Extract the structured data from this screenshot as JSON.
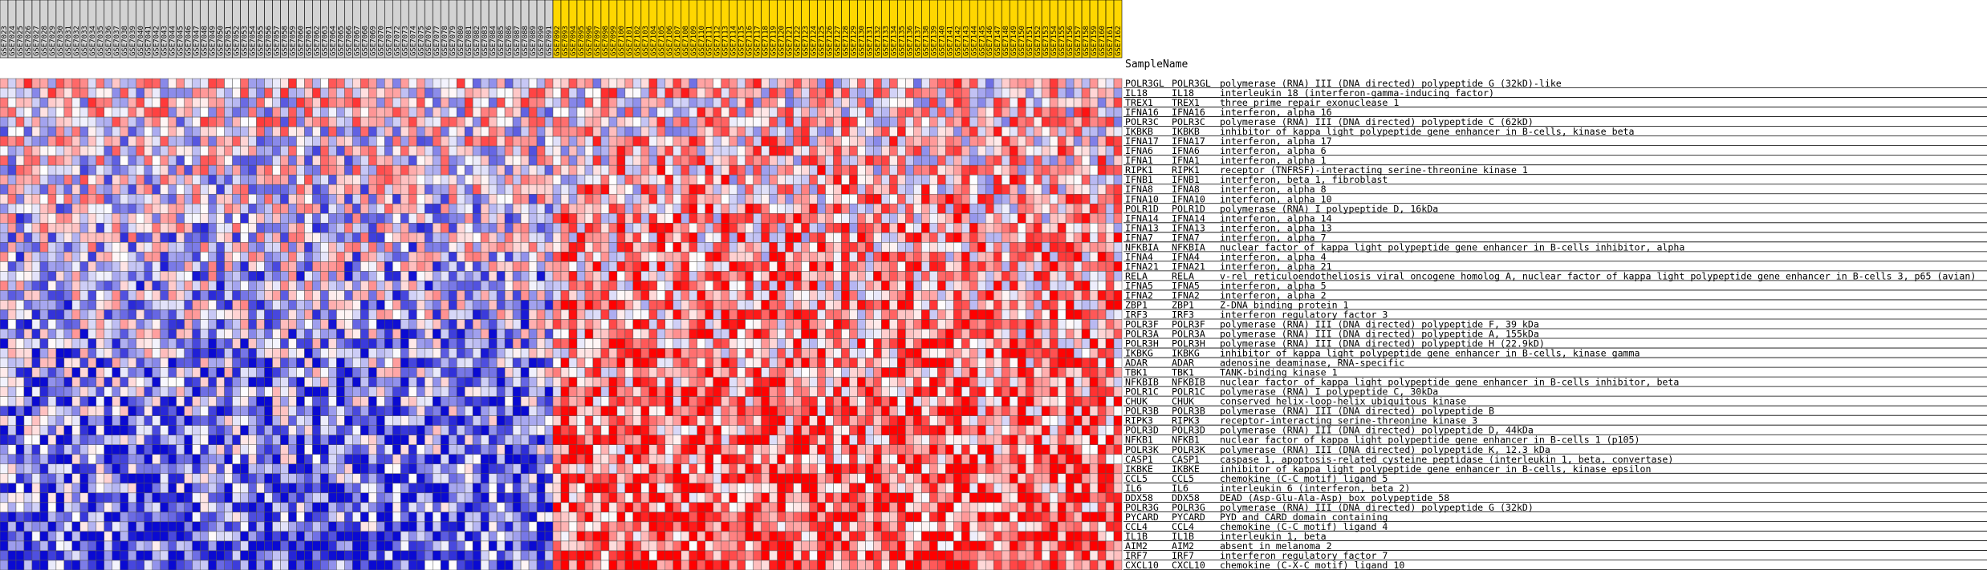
{
  "header_label": "SampleName",
  "chart_data": {
    "type": "heatmap",
    "columns": [
      "GSE7023",
      "GSE7024",
      "GSE7025",
      "GSE7026",
      "GSE7027",
      "GSE7028",
      "GSE7029",
      "GSE7030",
      "GSE7031",
      "GSE7032",
      "GSE7033",
      "GSE7034",
      "GSE7035",
      "GSE7036",
      "GSE7037",
      "GSE7038",
      "GSE7039",
      "GSE7040",
      "GSE7041",
      "GSE7042",
      "GSE7043",
      "GSE7044",
      "GSE7045",
      "GSE7046",
      "GSE7047",
      "GSE7048",
      "GSE7049",
      "GSE7050",
      "GSE7051",
      "GSE7052",
      "GSE7053",
      "GSE7054",
      "GSE7055",
      "GSE7056",
      "GSE7057",
      "GSE7058",
      "GSE7059",
      "GSE7060",
      "GSE7061",
      "GSE7062",
      "GSE7063",
      "GSE7064",
      "GSE7065",
      "GSE7066",
      "GSE7067",
      "GSE7068",
      "GSE7069",
      "GSE7070",
      "GSE7071",
      "GSE7072",
      "GSE7073",
      "GSE7074",
      "GSE7075",
      "GSE7076",
      "GSE7077",
      "GSE7078",
      "GSE7079",
      "GSE7080",
      "GSE7081",
      "GSE7082",
      "GSE7083",
      "GSE7084",
      "GSE7085",
      "GSE7086",
      "GSE7087",
      "GSE7088",
      "GSE7089",
      "GSE7090",
      "GSE7091",
      "GSE7092",
      "GSE7093",
      "GSE7094",
      "GSE7095",
      "GSE7096",
      "GSE7097",
      "GSE7098",
      "GSE7099",
      "GSE7100",
      "GSE7101",
      "GSE7102",
      "GSE7103",
      "GSE7104",
      "GSE7105",
      "GSE7106",
      "GSE7107",
      "GSE7108",
      "GSE7109",
      "GSE7110",
      "GSE7111",
      "GSE7112",
      "GSE7113",
      "GSE7114",
      "GSE7115",
      "GSE7116",
      "GSE7117",
      "GSE7118",
      "GSE7119",
      "GSE7120",
      "GSE7121",
      "GSE7122",
      "GSE7123",
      "GSE7124",
      "GSE7125",
      "GSE7126",
      "GSE7127",
      "GSE7128",
      "GSE7129",
      "GSE7130",
      "GSE7131",
      "GSE7132",
      "GSE7133",
      "GSE7134",
      "GSE7135",
      "GSE7136",
      "GSE7137",
      "GSE7138",
      "GSE7139",
      "GSE7140",
      "GSE7141",
      "GSE7142",
      "GSE7143",
      "GSE7144",
      "GSE7145",
      "GSE7146",
      "GSE7147",
      "GSE7148",
      "GSE7149",
      "GSE7150",
      "GSE7151",
      "GSE7152",
      "GSE7153",
      "GSE7154",
      "GSE7155",
      "GSE7156",
      "GSE7157",
      "GSE7158",
      "GSE7159",
      "GSE7160",
      "GSE7161",
      "GSE7162"
    ],
    "group_split_index": 69,
    "group_colors": {
      "group1": "#d3d3d3",
      "group2": "#ffd700"
    },
    "scale_colors": {
      "low": "#0000cc",
      "mid": "#ffffff",
      "high": "#ff0000"
    },
    "rows": [
      {
        "symbol": "POLR3GL",
        "id": "POLR3GL",
        "desc": "polymerase (RNA) III (DNA directed) polypeptide G (32kD)-like"
      },
      {
        "symbol": "IL18",
        "id": "IL18",
        "desc": "interleukin 18 (interferon-gamma-inducing factor)"
      },
      {
        "symbol": "TREX1",
        "id": "TREX1",
        "desc": "three prime repair exonuclease 1"
      },
      {
        "symbol": "IFNA16",
        "id": "IFNA16",
        "desc": "interferon, alpha 16"
      },
      {
        "symbol": "POLR3C",
        "id": "POLR3C",
        "desc": "polymerase (RNA) III (DNA directed) polypeptide C (62kD)"
      },
      {
        "symbol": "IKBKB",
        "id": "IKBKB",
        "desc": "inhibitor of kappa light polypeptide gene enhancer in B-cells, kinase beta"
      },
      {
        "symbol": "IFNA17",
        "id": "IFNA17",
        "desc": "interferon, alpha 17"
      },
      {
        "symbol": "IFNA6",
        "id": "IFNA6",
        "desc": "interferon, alpha 6"
      },
      {
        "symbol": "IFNA1",
        "id": "IFNA1",
        "desc": "interferon, alpha 1"
      },
      {
        "symbol": "RIPK1",
        "id": "RIPK1",
        "desc": "receptor (TNFRSF)-interacting serine-threonine kinase 1"
      },
      {
        "symbol": "IFNB1",
        "id": "IFNB1",
        "desc": "interferon, beta 1, fibroblast"
      },
      {
        "symbol": "IFNA8",
        "id": "IFNA8",
        "desc": "interferon, alpha 8"
      },
      {
        "symbol": "IFNA10",
        "id": "IFNA10",
        "desc": "interferon, alpha 10"
      },
      {
        "symbol": "POLR1D",
        "id": "POLR1D",
        "desc": "polymerase (RNA) I polypeptide D, 16kDa"
      },
      {
        "symbol": "IFNA14",
        "id": "IFNA14",
        "desc": "interferon, alpha 14"
      },
      {
        "symbol": "IFNA13",
        "id": "IFNA13",
        "desc": "interferon, alpha 13"
      },
      {
        "symbol": "IFNA7",
        "id": "IFNA7",
        "desc": "interferon, alpha 7"
      },
      {
        "symbol": "NFKBIA",
        "id": "NFKBIA",
        "desc": "nuclear factor of kappa light polypeptide gene enhancer in B-cells inhibitor, alpha"
      },
      {
        "symbol": "IFNA4",
        "id": "IFNA4",
        "desc": "interferon, alpha 4"
      },
      {
        "symbol": "IFNA21",
        "id": "IFNA21",
        "desc": "interferon, alpha 21"
      },
      {
        "symbol": "RELA",
        "id": "RELA",
        "desc": "v-rel reticuloendotheliosis viral oncogene homolog A, nuclear factor of kappa light polypeptide gene enhancer in B-cells 3, p65 (avian)"
      },
      {
        "symbol": "IFNA5",
        "id": "IFNA5",
        "desc": "interferon, alpha 5"
      },
      {
        "symbol": "IFNA2",
        "id": "IFNA2",
        "desc": "interferon, alpha 2"
      },
      {
        "symbol": "ZBP1",
        "id": "ZBP1",
        "desc": "Z-DNA binding protein 1"
      },
      {
        "symbol": "IRF3",
        "id": "IRF3",
        "desc": "interferon regulatory factor 3"
      },
      {
        "symbol": "POLR3F",
        "id": "POLR3F",
        "desc": "polymerase (RNA) III (DNA directed) polypeptide F, 39 kDa"
      },
      {
        "symbol": "POLR3A",
        "id": "POLR3A",
        "desc": "polymerase (RNA) III (DNA directed) polypeptide A, 155kDa"
      },
      {
        "symbol": "POLR3H",
        "id": "POLR3H",
        "desc": "polymerase (RNA) III (DNA directed) polypeptide H (22.9kD)"
      },
      {
        "symbol": "IKBKG",
        "id": "IKBKG",
        "desc": "inhibitor of kappa light polypeptide gene enhancer in B-cells, kinase gamma"
      },
      {
        "symbol": "ADAR",
        "id": "ADAR",
        "desc": "adenosine deaminase, RNA-specific"
      },
      {
        "symbol": "TBK1",
        "id": "TBK1",
        "desc": "TANK-binding kinase 1"
      },
      {
        "symbol": "NFKBIB",
        "id": "NFKBIB",
        "desc": "nuclear factor of kappa light polypeptide gene enhancer in B-cells inhibitor, beta"
      },
      {
        "symbol": "POLR1C",
        "id": "POLR1C",
        "desc": "polymerase (RNA) I polypeptide C, 30kDa"
      },
      {
        "symbol": "CHUK",
        "id": "CHUK",
        "desc": "conserved helix-loop-helix ubiquitous kinase"
      },
      {
        "symbol": "POLR3B",
        "id": "POLR3B",
        "desc": "polymerase (RNA) III (DNA directed) polypeptide B"
      },
      {
        "symbol": "RIPK3",
        "id": "RIPK3",
        "desc": "receptor-interacting serine-threonine kinase 3"
      },
      {
        "symbol": "POLR3D",
        "id": "POLR3D",
        "desc": "polymerase (RNA) III (DNA directed) polypeptide D, 44kDa"
      },
      {
        "symbol": "NFKB1",
        "id": "NFKB1",
        "desc": "nuclear factor of kappa light polypeptide gene enhancer in B-cells 1 (p105)"
      },
      {
        "symbol": "POLR3K",
        "id": "POLR3K",
        "desc": "polymerase (RNA) III (DNA directed) polypeptide K, 12.3 kDa"
      },
      {
        "symbol": "CASP1",
        "id": "CASP1",
        "desc": "caspase 1, apoptosis-related cysteine peptidase (interleukin 1, beta, convertase)"
      },
      {
        "symbol": "IKBKE",
        "id": "IKBKE",
        "desc": "inhibitor of kappa light polypeptide gene enhancer in B-cells, kinase epsilon"
      },
      {
        "symbol": "CCL5",
        "id": "CCL5",
        "desc": "chemokine (C-C motif) ligand 5"
      },
      {
        "symbol": "IL6",
        "id": "IL6",
        "desc": "interleukin 6 (interferon, beta 2)"
      },
      {
        "symbol": "DDX58",
        "id": "DDX58",
        "desc": "DEAD (Asp-Glu-Ala-Asp) box polypeptide 58"
      },
      {
        "symbol": "POLR3G",
        "id": "POLR3G",
        "desc": "polymerase (RNA) III (DNA directed) polypeptide G (32kD)"
      },
      {
        "symbol": "PYCARD",
        "id": "PYCARD",
        "desc": "PYD and CARD domain containing"
      },
      {
        "symbol": "CCL4",
        "id": "CCL4",
        "desc": "chemokine (C-C motif) ligand 4"
      },
      {
        "symbol": "IL1B",
        "id": "IL1B",
        "desc": "interleukin 1, beta"
      },
      {
        "symbol": "AIM2",
        "id": "AIM2",
        "desc": "absent in melanoma 2"
      },
      {
        "symbol": "IRF7",
        "id": "IRF7",
        "desc": "interferon regulatory factor 7"
      },
      {
        "symbol": "CXCL10",
        "id": "CXCL10",
        "desc": "chemokine (C-X-C motif) ligand 10"
      }
    ]
  }
}
